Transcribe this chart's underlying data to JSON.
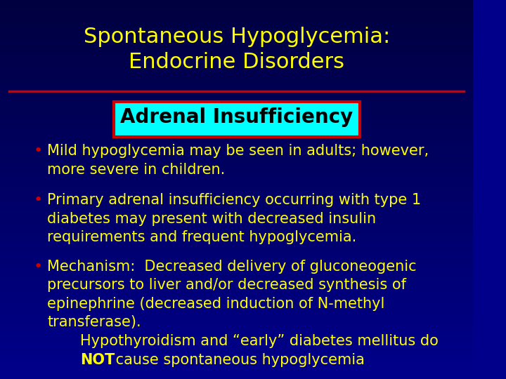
{
  "title_line1": "Spontaneous Hypoglycemia:",
  "title_line2": "Endocrine Disorders",
  "title_color": "#FFFF00",
  "title_fontsize": 22,
  "subtitle": "Adrenal Insufficiency",
  "subtitle_fontsize": 20,
  "subtitle_text_color": "#000000",
  "subtitle_bg_color": "#00FFFF",
  "subtitle_border_color": "#CC0000",
  "divider_color": "#CC0000",
  "background_color_top": "#000080",
  "background_color_bottom": "#000030",
  "bullet_color": "#CC0000",
  "text_color": "#FFFF00",
  "bullet_fontsize": 15,
  "bullet1_line1": "Mild hypoglycemia may be seen in adults; however,",
  "bullet1_line2": "more severe in children.",
  "bullet2_line1": "Primary adrenal insufficiency occurring with type 1",
  "bullet2_line2": "diabetes may present with decreased insulin",
  "bullet2_line3": "requirements and frequent hypoglycemia.",
  "bullet3_line1": "Mechanism:  Decreased delivery of gluconeogenic",
  "bullet3_line2": "precursors to liver and/or decreased synthesis of",
  "bullet3_line3": "epinephrine (decreased induction of N-methyl",
  "bullet3_line4": "transferase).",
  "note_line1": "Hypothyroidism and “early” diabetes mellitus do",
  "note_line2_normal": " cause spontaneous hypoglycemia",
  "note_line2_bold": "NOT",
  "note_fontsize": 15
}
